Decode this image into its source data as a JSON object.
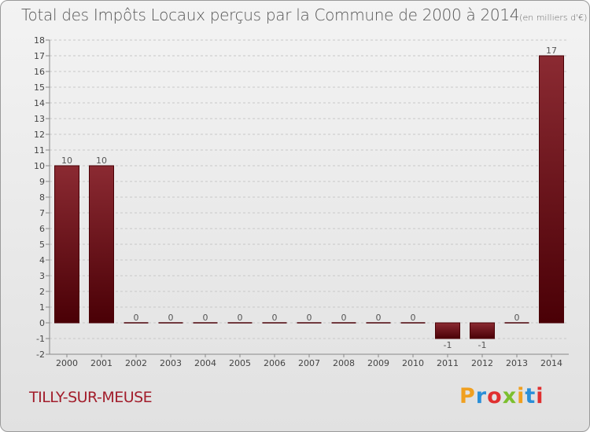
{
  "header": {
    "title": "Total des Impôts Locaux perçus par la Commune de 2000 à 2014",
    "unit": "(en milliers d'€)"
  },
  "commune_name": "TILLY-SUR-MEUSE",
  "logo": {
    "letters": [
      "P",
      "r",
      "o",
      "x",
      "i",
      "t",
      "i"
    ],
    "colors": [
      "#f0a020",
      "#2a8fd8",
      "#e03030",
      "#7cbf2f",
      "#f0a020",
      "#2a8fd8",
      "#e03030"
    ]
  },
  "colors": {
    "bar_dark": "#4a0006",
    "bar_light": "#8b2a32",
    "grid": "#c8c8c8",
    "axis": "#888888"
  },
  "chart_data": {
    "type": "bar",
    "title": "Total des Impôts Locaux perçus par la Commune de 2000 à 2014",
    "ylabel": "en milliers d'€",
    "xlabel": "",
    "categories": [
      "2000",
      "2001",
      "2002",
      "2003",
      "2004",
      "2005",
      "2006",
      "2007",
      "2008",
      "2009",
      "2010",
      "2011",
      "2012",
      "2013",
      "2014"
    ],
    "values": [
      10,
      10,
      0,
      0,
      0,
      0,
      0,
      0,
      0,
      0,
      0,
      -1,
      -1,
      0,
      17
    ],
    "data_labels": [
      "10",
      "10",
      "0",
      "0",
      "0",
      "0",
      "0",
      "0",
      "0",
      "0",
      "0",
      "-1",
      "-1",
      "0",
      "17"
    ],
    "ylim": [
      -2,
      18
    ],
    "yticks": [
      -2,
      -1,
      0,
      1,
      2,
      3,
      4,
      5,
      6,
      7,
      8,
      9,
      10,
      11,
      12,
      13,
      14,
      15,
      16,
      17,
      18
    ],
    "ytick_labels": [
      "-2",
      "-1",
      "0",
      "1",
      "2",
      "3",
      "4",
      "5",
      "6",
      "7",
      "8",
      "9",
      "10",
      "11",
      "12",
      "13",
      "14",
      "15",
      "16",
      "17",
      "18"
    ],
    "grid": true
  }
}
